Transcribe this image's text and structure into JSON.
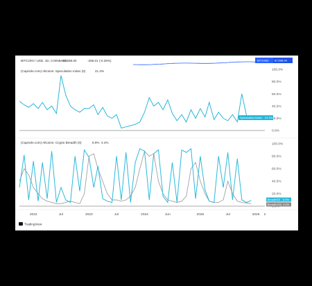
{
  "window": {
    "brand": "TradingView"
  },
  "top_strip": {
    "symbol": "BITCOIN / USD, 1D, COINBASE",
    "price": "87,598.00",
    "change": "-258.01 (-0.29%)",
    "price_tag_symbol": "BTCUSD",
    "price_tag_value": "87,598.00",
    "colors": {
      "line": "#2962ff",
      "tag_bg": "#2962ff",
      "tag_value_bg": "#1e53e5"
    }
  },
  "chart_data": [
    {
      "type": "line",
      "title": "(Capriole.com) Altcoins: Speculation Index (0)",
      "title_value": "21.3%",
      "ylim": [
        0,
        100
      ],
      "y_ticks": [
        "100.0%",
        "80.0%",
        "60.0%",
        "40.0%",
        "20.0%",
        "0.0%"
      ],
      "tag_label": "Speculation Index",
      "tag_value": "21.3%",
      "colors": {
        "line": "#29b6d8",
        "tag_bg": "#29b6d8",
        "baseline": "#555555"
      },
      "x": [
        "2021-10",
        "2021-11",
        "2021-12",
        "2022-01",
        "2022-02",
        "2022-03",
        "2022-04",
        "2022-05",
        "2022-06",
        "2022-07",
        "2022-08",
        "2022-09",
        "2022-10",
        "2022-11",
        "2022-12",
        "2023-01",
        "2023-02",
        "2023-03",
        "2023-04",
        "2023-05",
        "2023-06",
        "2023-07",
        "2023-08",
        "2023-09",
        "2023-10",
        "2023-11",
        "2023-12",
        "2024-01",
        "2024-02",
        "2024-03",
        "2024-04",
        "2024-05",
        "2024-06",
        "2024-07",
        "2024-08",
        "2024-09",
        "2024-10",
        "2024-11",
        "2024-12",
        "2025-01",
        "2025-02",
        "2025-03",
        "2025-04",
        "2025-05",
        "2025-06",
        "2025-07",
        "2025-08",
        "2025-09",
        "2025-10",
        "2025-11",
        "2025-12"
      ],
      "series": [
        {
          "values": [
            48,
            42,
            38,
            44,
            36,
            46,
            34,
            40,
            28,
            90,
            58,
            40,
            34,
            30,
            36,
            36,
            42,
            26,
            38,
            24,
            20,
            26,
            4,
            6,
            8,
            10,
            14,
            30,
            54,
            40,
            46,
            34,
            50,
            28,
            16,
            26,
            14,
            34,
            20,
            36,
            22,
            46,
            18,
            30,
            20,
            16,
            26,
            14,
            60,
            24,
            21
          ]
        }
      ]
    },
    {
      "type": "line",
      "title": "(Capriole.com) Altcoins: Crypto Breadth (0)",
      "title_values": [
        "8.9%",
        "4.4%"
      ],
      "ylim": [
        0,
        100
      ],
      "y_ticks": [
        "100.0%",
        "80.0%",
        "60.0%",
        "40.0%",
        "20.0%",
        "0.0%"
      ],
      "colors": {
        "baseline": "#555555"
      },
      "x": [
        "2021-10",
        "2021-11",
        "2021-12",
        "2022-01",
        "2022-02",
        "2022-03",
        "2022-04",
        "2022-05",
        "2022-06",
        "2022-07",
        "2022-08",
        "2022-09",
        "2022-10",
        "2022-11",
        "2022-12",
        "2023-01",
        "2023-02",
        "2023-03",
        "2023-04",
        "2023-05",
        "2023-06",
        "2023-07",
        "2023-08",
        "2023-09",
        "2023-10",
        "2023-11",
        "2023-12",
        "2024-01",
        "2024-02",
        "2024-03",
        "2024-04",
        "2024-05",
        "2024-06",
        "2024-07",
        "2024-08",
        "2024-09",
        "2024-10",
        "2024-11",
        "2024-12",
        "2025-01",
        "2025-02",
        "2025-03",
        "2025-04",
        "2025-05",
        "2025-06",
        "2025-07",
        "2025-08",
        "2025-09",
        "2025-10",
        "2025-11",
        "2025-12"
      ],
      "series": [
        {
          "name": "Breadth50",
          "tag_value": "8.9%",
          "color": "#2bb8dc",
          "values": [
            30,
            82,
            10,
            72,
            8,
            70,
            12,
            88,
            6,
            30,
            10,
            6,
            80,
            24,
            90,
            78,
            30,
            64,
            12,
            8,
            6,
            80,
            10,
            86,
            6,
            70,
            92,
            88,
            10,
            84,
            90,
            16,
            6,
            70,
            6,
            90,
            86,
            92,
            12,
            80,
            26,
            8,
            6,
            80,
            30,
            86,
            10,
            76,
            10,
            6,
            9
          ]
        },
        {
          "name": "Breadth200",
          "tag_value": "4.4%",
          "color": "#a0a0a0",
          "values": [
            40,
            60,
            50,
            30,
            20,
            12,
            8,
            6,
            4,
            4,
            6,
            8,
            6,
            4,
            20,
            80,
            84,
            60,
            40,
            20,
            10,
            10,
            8,
            10,
            16,
            30,
            60,
            88,
            80,
            84,
            40,
            20,
            10,
            8,
            6,
            8,
            16,
            60,
            70,
            40,
            20,
            8,
            6,
            6,
            10,
            40,
            20,
            8,
            6,
            5,
            4
          ]
        }
      ]
    }
  ],
  "x_axis": {
    "labels": [
      {
        "text": "2022",
        "at": "2022-01"
      },
      {
        "text": "Jul",
        "at": "2022-07"
      },
      {
        "text": "2023",
        "at": "2023-01"
      },
      {
        "text": "Jul",
        "at": "2023-07"
      },
      {
        "text": "2024",
        "at": "2024-01"
      },
      {
        "text": "Jun",
        "at": "2024-06"
      },
      {
        "text": "2025",
        "at": "2025-01"
      },
      {
        "text": "Jul",
        "at": "2025-07"
      },
      {
        "text": "2026",
        "at": "2026-01"
      },
      {
        "text": "2",
        "at": "2026-03"
      }
    ]
  }
}
